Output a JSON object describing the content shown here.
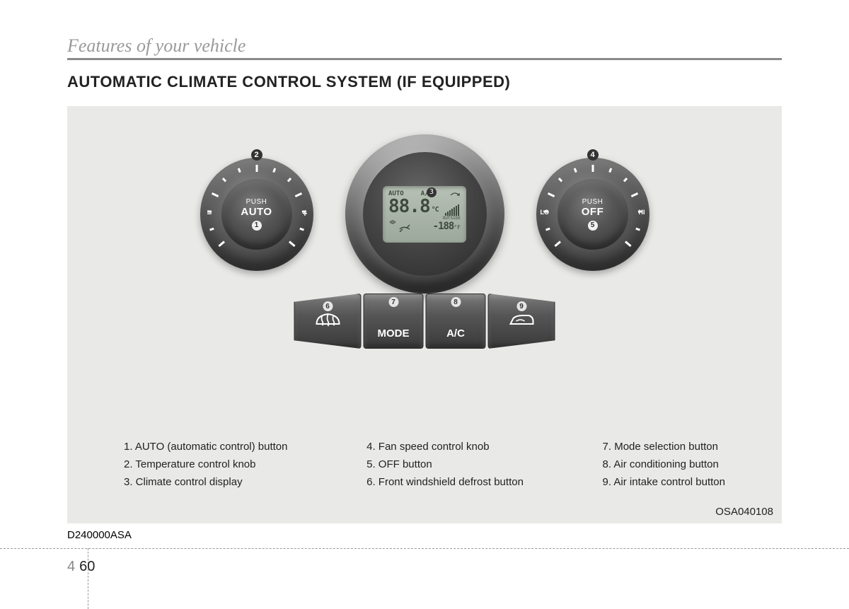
{
  "header": {
    "section": "Features of your vehicle",
    "title": "AUTOMATIC CLIMATE CONTROL SYSTEM (IF EQUIPPED)"
  },
  "knob_left": {
    "push": "PUSH",
    "label": "AUTO",
    "callout": "1",
    "top_callout": "2",
    "left_side": "−",
    "right_side": "+"
  },
  "knob_right": {
    "push": "PUSH",
    "label": "OFF",
    "callout": "5",
    "top_callout": "4",
    "left_side": "LO",
    "right_side": "HI"
  },
  "display": {
    "callout": "3",
    "auto": "AUTO",
    "ac": "A/C",
    "temp": "88.8",
    "temp_unit": "°C",
    "outside_label": "OUTSIDE",
    "outside_temp": "-188",
    "outside_unit": "°F"
  },
  "buttons": {
    "defrost_callout": "6",
    "mode_callout": "7",
    "mode_label": "MODE",
    "ac_callout": "8",
    "ac_label": "A/C",
    "recirc_callout": "9"
  },
  "legend": {
    "col1": [
      "1. AUTO (automatic control) button",
      "2. Temperature control knob",
      "3. Climate control display"
    ],
    "col2": [
      "4. Fan speed control knob",
      "5. OFF button",
      "6. Front windshield defrost button"
    ],
    "col3": [
      "7. Mode selection button",
      "8. Air conditioning button",
      "9. Air intake control button"
    ]
  },
  "figure_code": "OSA040108",
  "doc_code": "D240000ASA",
  "page": {
    "chapter": "4",
    "number": "60"
  },
  "colors": {
    "bg": "#e9e9e7",
    "lcd": "#9ca89b"
  }
}
